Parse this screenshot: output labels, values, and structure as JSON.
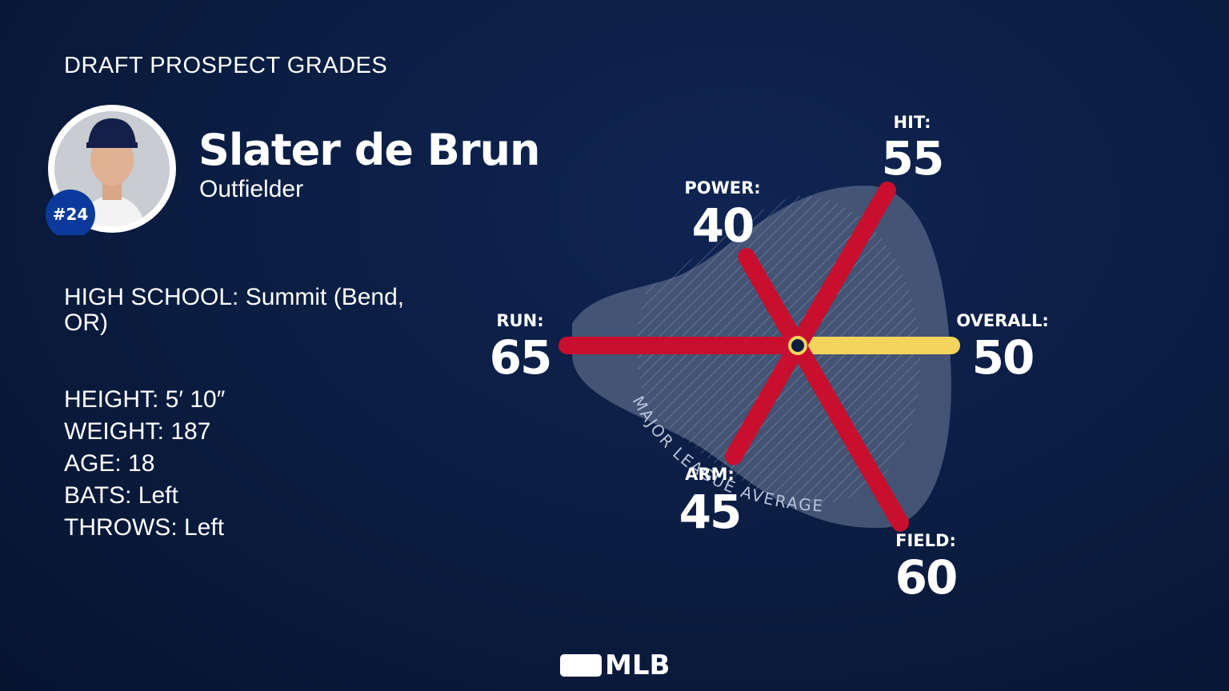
{
  "header": {
    "title": "DRAFT PROSPECT GRADES"
  },
  "player": {
    "name": "Slater de Brun",
    "position": "Outfielder",
    "number": "#24",
    "school": "HIGH SCHOOL: Summit (Bend, OR)",
    "stats": [
      "HEIGHT: 5′ 10″",
      "WEIGHT: 187",
      "AGE: 18",
      "BATS: Left",
      "THROWS: Left"
    ]
  },
  "chart_data": {
    "type": "radial",
    "categories": [
      "HIT:",
      "POWER:",
      "RUN:",
      "ARM:",
      "FIELD:",
      "OVERALL:"
    ],
    "values": [
      55,
      40,
      65,
      45,
      60,
      50
    ],
    "colors": [
      "#c8102e",
      "#c8102e",
      "#c8102e",
      "#c8102e",
      "#c8102e",
      "#f5d45e"
    ],
    "rlim": [
      20,
      80
    ],
    "annotation": "MAJOR LEAGUE AVERAGE"
  },
  "footer": {
    "logo": "MLB"
  }
}
